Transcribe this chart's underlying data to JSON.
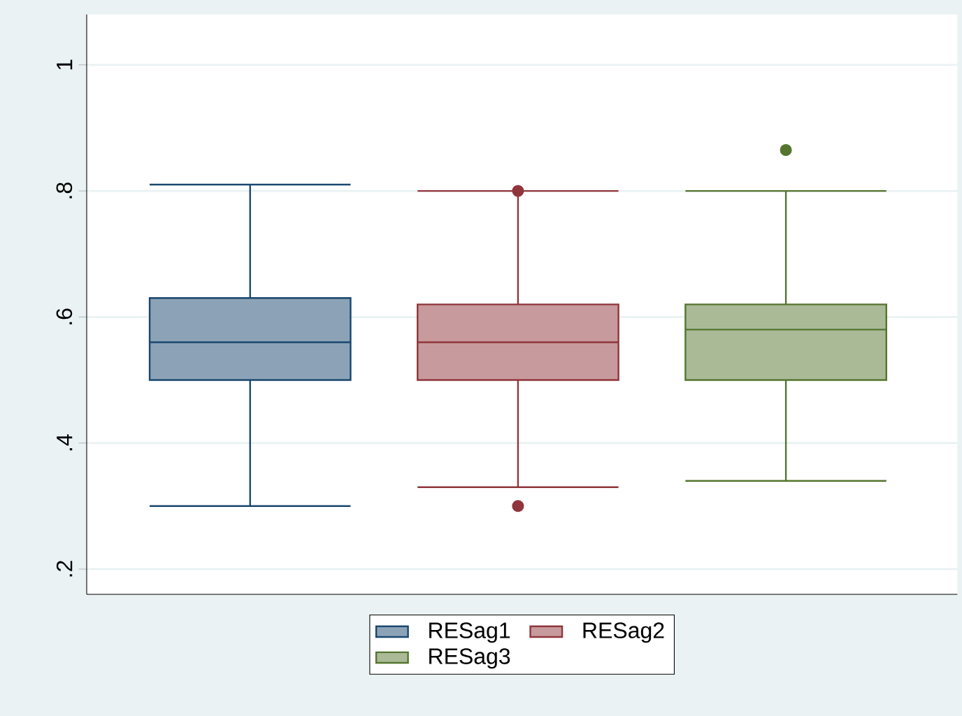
{
  "chart_data": {
    "type": "box",
    "categories": [
      null
    ],
    "series": [
      {
        "name": "RESag1",
        "color": "#1a476f",
        "boxes": [
          {
            "low": 0.3,
            "q1": 0.5,
            "median": 0.56,
            "q3": 0.63,
            "high": 0.81
          }
        ]
      },
      {
        "name": "RESag2",
        "color": "#90353b",
        "boxes": [
          {
            "low": 0.33,
            "q1": 0.5,
            "median": 0.56,
            "q3": 0.62,
            "high": 0.8,
            "outliers": [
              0.8,
              0.3
            ]
          }
        ]
      },
      {
        "name": "RESag3",
        "color": "#55752f",
        "boxes": [
          {
            "low": 0.34,
            "q1": 0.5,
            "median": 0.58,
            "q3": 0.62,
            "high": 0.8,
            "outliers": [
              0.865
            ]
          }
        ]
      }
    ],
    "ylim": [
      0.16,
      1.08
    ],
    "yticks": [
      {
        "value": 0.2,
        "label": ".2"
      },
      {
        "value": 0.4,
        "label": ".4"
      },
      {
        "value": 0.6,
        "label": ".6"
      },
      {
        "value": 0.8,
        "label": ".8"
      },
      1
    ],
    "grid": "y",
    "legend": "bottom",
    "tick_labels": "y"
  }
}
